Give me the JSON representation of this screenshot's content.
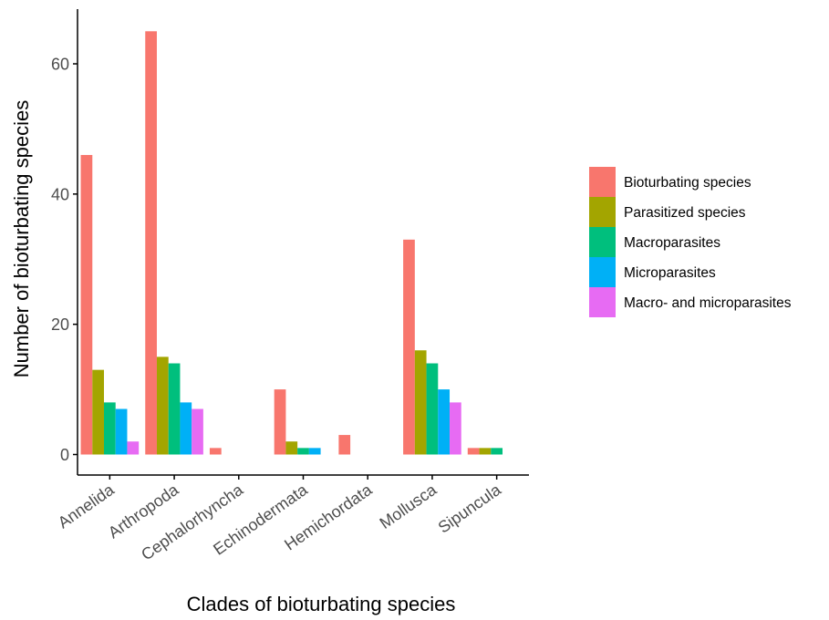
{
  "chart_data": {
    "type": "bar",
    "xlabel": "Clades of bioturbating species",
    "ylabel": "Number of bioturbating species",
    "ylim": [
      0,
      66
    ],
    "yticks": [
      0,
      20,
      40,
      60
    ],
    "grid": false,
    "legend_position": "right",
    "categories": [
      "Annelida",
      "Arthropoda",
      "Cephalorhyncha",
      "Echinodermata",
      "Hemichordata",
      "Mollusca",
      "Sipuncula"
    ],
    "series": [
      {
        "name": "Bioturbating species",
        "color": "#F8766D",
        "values": [
          46,
          65,
          1,
          10,
          3,
          33,
          1
        ]
      },
      {
        "name": "Parasitized species",
        "color": "#A3A500",
        "values": [
          13,
          15,
          0,
          2,
          0,
          16,
          1
        ]
      },
      {
        "name": "Macroparasites",
        "color": "#00BF7D",
        "values": [
          8,
          14,
          0,
          1,
          0,
          14,
          1
        ]
      },
      {
        "name": "Microparasites",
        "color": "#00B0F6",
        "values": [
          7,
          8,
          0,
          1,
          0,
          10,
          0
        ]
      },
      {
        "name": "Macro- and microparasites",
        "color": "#E76BF3",
        "values": [
          2,
          7,
          0,
          0,
          0,
          8,
          0
        ]
      }
    ]
  }
}
